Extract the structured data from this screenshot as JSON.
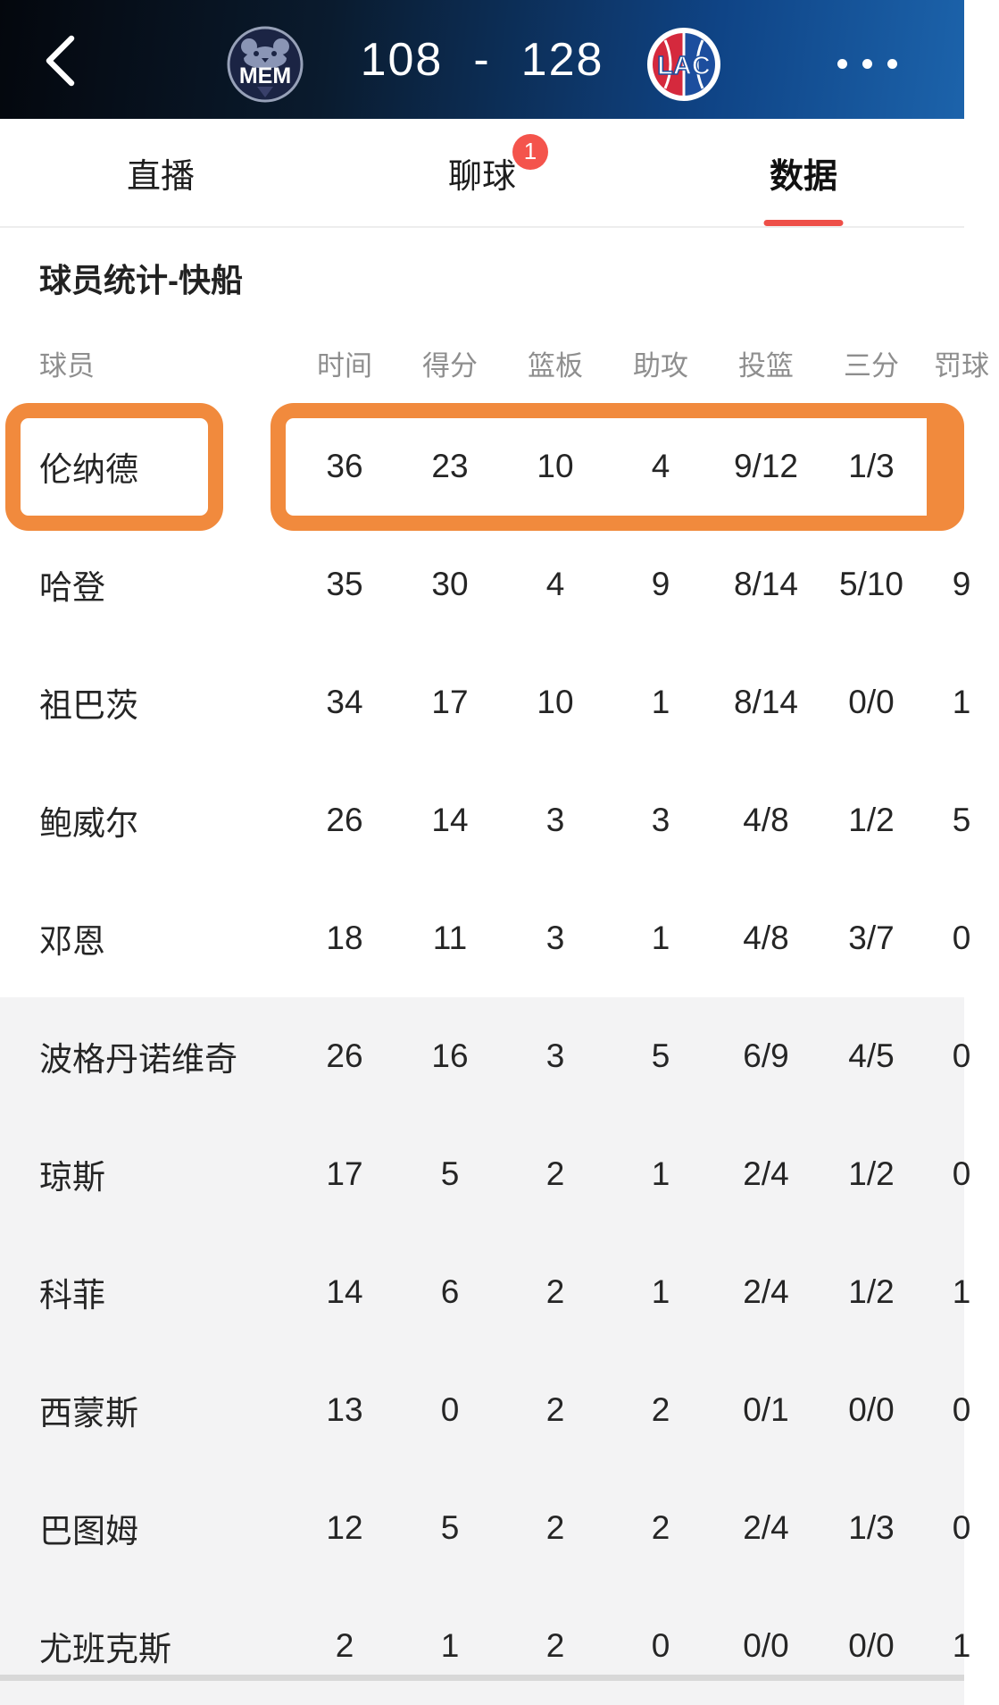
{
  "header": {
    "home_team_abbr": "MEM",
    "away_team_abbr": "LAC",
    "score_home": "108",
    "score_separator": "-",
    "score_away": "128",
    "icons": {
      "back": "chevron-left-icon",
      "menu": "ellipsis-icon"
    }
  },
  "tabs": [
    {
      "label": "直播",
      "active": false
    },
    {
      "label": "聊球",
      "active": false,
      "badge": "1"
    },
    {
      "label": "数据",
      "active": true
    }
  ],
  "section": {
    "title": "球员统计-快船"
  },
  "table": {
    "columns": [
      "球员",
      "时间",
      "得分",
      "篮板",
      "助攻",
      "投篮",
      "三分",
      "罚球"
    ],
    "rows": [
      {
        "name": "伦纳德",
        "highlight": true,
        "bench": false,
        "stats": [
          "36",
          "23",
          "10",
          "4",
          "9/12",
          "1/3",
          ""
        ]
      },
      {
        "name": "哈登",
        "bench": false,
        "stats": [
          "35",
          "30",
          "4",
          "9",
          "8/14",
          "5/10",
          "9"
        ]
      },
      {
        "name": "祖巴茨",
        "bench": false,
        "stats": [
          "34",
          "17",
          "10",
          "1",
          "8/14",
          "0/0",
          "1"
        ]
      },
      {
        "name": "鲍威尔",
        "bench": false,
        "stats": [
          "26",
          "14",
          "3",
          "3",
          "4/8",
          "1/2",
          "5"
        ]
      },
      {
        "name": "邓恩",
        "bench": false,
        "stats": [
          "18",
          "11",
          "3",
          "1",
          "4/8",
          "3/7",
          "0"
        ]
      },
      {
        "name": "波格丹诺维奇",
        "bench": true,
        "stats": [
          "26",
          "16",
          "3",
          "5",
          "6/9",
          "4/5",
          "0"
        ]
      },
      {
        "name": "琼斯",
        "bench": true,
        "stats": [
          "17",
          "5",
          "2",
          "1",
          "2/4",
          "1/2",
          "0"
        ]
      },
      {
        "name": "科菲",
        "bench": true,
        "stats": [
          "14",
          "6",
          "2",
          "1",
          "2/4",
          "1/2",
          "1"
        ]
      },
      {
        "name": "西蒙斯",
        "bench": true,
        "stats": [
          "13",
          "0",
          "2",
          "2",
          "0/1",
          "0/0",
          "0"
        ]
      },
      {
        "name": "巴图姆",
        "bench": true,
        "stats": [
          "12",
          "5",
          "2",
          "2",
          "2/4",
          "1/3",
          "0"
        ]
      },
      {
        "name": "尤班克斯",
        "bench": true,
        "stats": [
          "2",
          "1",
          "2",
          "0",
          "0/0",
          "0/0",
          "1"
        ]
      }
    ]
  },
  "colors": {
    "accent_red": "#ee4f48",
    "badge_red": "#f4544c",
    "highlight_orange": "#f18a3d",
    "bench_row_bg": "#f3f3f4",
    "column_header_text": "#8e8e8e",
    "header_gradient": [
      "#04070d",
      "#0a1b2e",
      "#0f4486",
      "#1c63ab"
    ]
  }
}
